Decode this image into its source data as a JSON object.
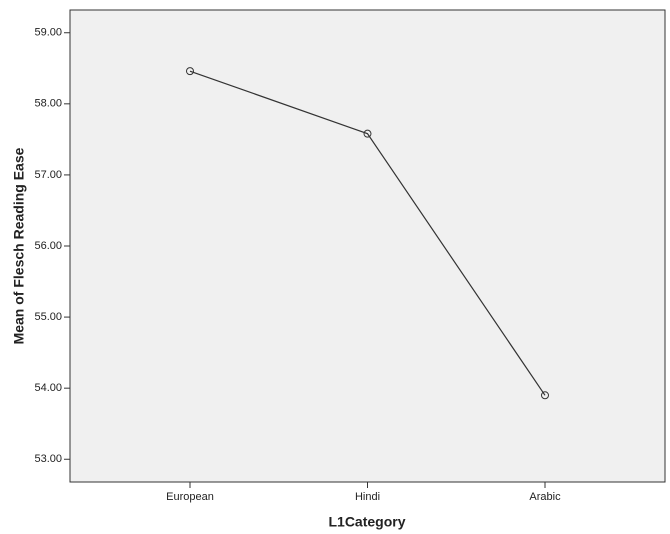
{
  "chart_data": {
    "type": "line",
    "x_label": "L1Category",
    "y_label": "Mean of Flesch Reading Ease",
    "categories": [
      "European",
      "Hindi",
      "Arabic"
    ],
    "values": [
      58.46,
      57.58,
      53.9
    ],
    "color": "#333333",
    "ylim": [
      52.68,
      59.32
    ],
    "yticks": [
      {
        "value": 53,
        "label": "53.00"
      },
      {
        "value": 54,
        "label": "54.00"
      },
      {
        "value": 55,
        "label": "55.00"
      },
      {
        "value": 56,
        "label": "56.00"
      },
      {
        "value": 57,
        "label": "57.00"
      },
      {
        "value": 58,
        "label": "58.00"
      },
      {
        "value": 59,
        "label": "59.00"
      }
    ],
    "grid": false
  }
}
